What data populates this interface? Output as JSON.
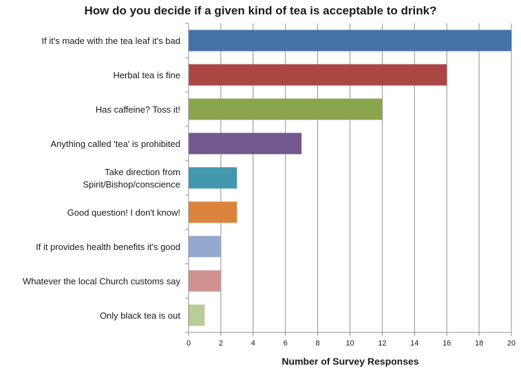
{
  "chart_data": {
    "type": "bar",
    "orientation": "horizontal",
    "title": "How do you decide if a given kind of tea is acceptable to drink?",
    "xlabel": "Number of Survey Responses",
    "ylabel": "",
    "xlim": [
      0,
      20
    ],
    "xticks": [
      "0",
      "2",
      "4",
      "6",
      "8",
      "10",
      "12",
      "14",
      "16",
      "18",
      "20"
    ],
    "grid": "vertical",
    "legend": "none",
    "categories": [
      [
        "If it's made with the tea leaf it's bad"
      ],
      [
        "Herbal tea is fine"
      ],
      [
        "Has caffeine? Toss it!"
      ],
      [
        "Anything called 'tea' is prohibited"
      ],
      [
        "Take direction from",
        "Spirit/Bishop/conscience"
      ],
      [
        "Good question!  I don't  know!"
      ],
      [
        "If it provides health benefits it's good"
      ],
      [
        "Whatever the local Church customs say"
      ],
      [
        "Only black tea is out"
      ]
    ],
    "values": [
      20,
      16,
      12,
      7,
      3,
      3,
      2,
      2,
      1
    ],
    "colors": [
      "#4572A7",
      "#AA4643",
      "#89A54E",
      "#71588F",
      "#4198AF",
      "#DB843D",
      "#93A9CF",
      "#D19392",
      "#B9CD96"
    ]
  }
}
